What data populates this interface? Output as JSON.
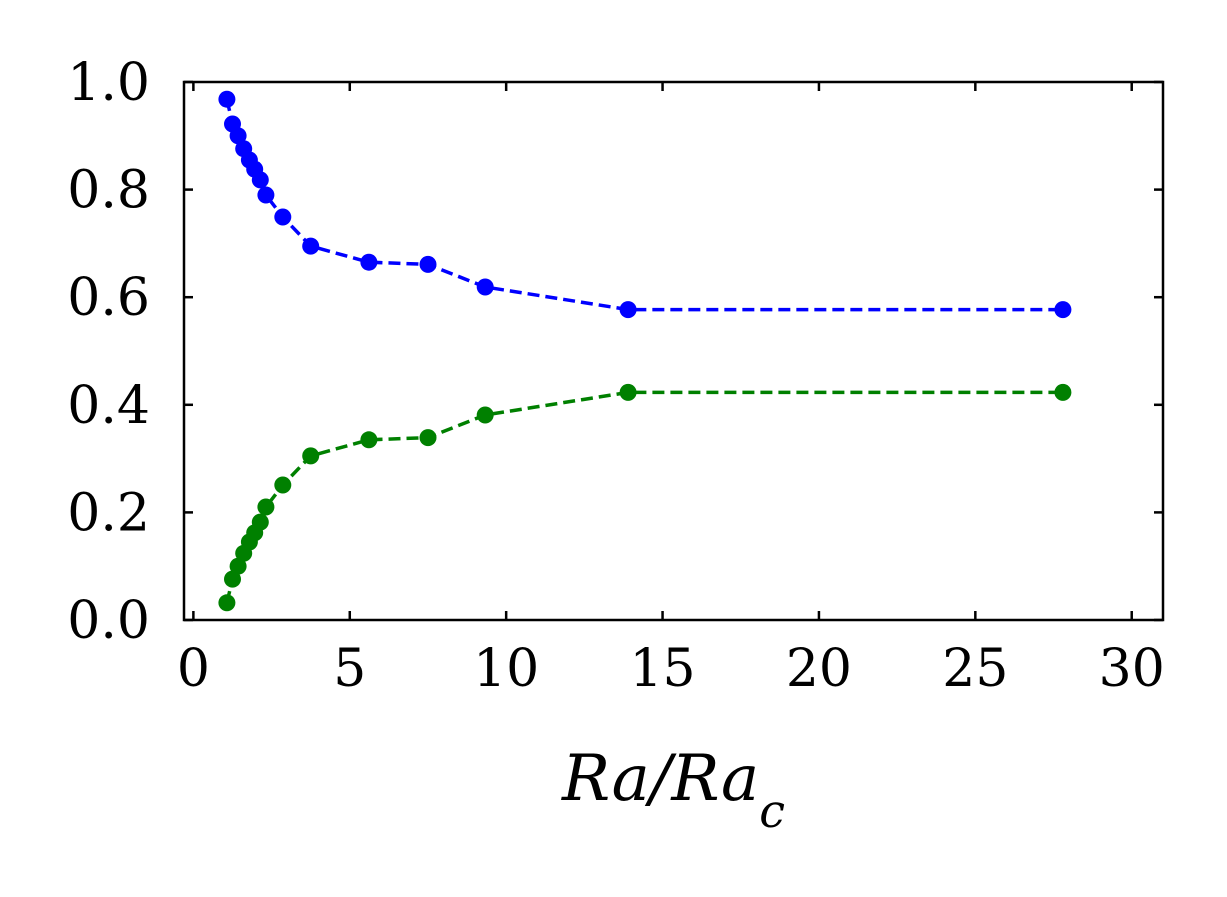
{
  "chart_data": {
    "type": "line",
    "title": "",
    "xlabel": "Ra/Ra",
    "xlabel_subscript": "c",
    "ylabel": "",
    "xlim": [
      -0.3,
      31
    ],
    "ylim": [
      0,
      1
    ],
    "xticks": [
      0,
      5,
      10,
      15,
      20,
      25,
      30
    ],
    "xtick_labels": [
      "0",
      "5",
      "10",
      "15",
      "20",
      "25",
      "30"
    ],
    "yticks": [
      0,
      0.2,
      0.4,
      0.6,
      0.8,
      1.0
    ],
    "ytick_labels": [
      "0.0",
      "0.2",
      "0.4",
      "0.6",
      "0.8",
      "1.0"
    ],
    "grid": false,
    "legend": "none",
    "x": [
      1.07,
      1.25,
      1.43,
      1.61,
      1.79,
      1.96,
      2.14,
      2.32,
      2.86,
      3.75,
      5.61,
      7.5,
      9.33,
      13.9,
      27.8
    ],
    "series": [
      {
        "color": "#0000ff",
        "line_style": "dashed",
        "values": [
          0.968,
          0.922,
          0.9,
          0.876,
          0.855,
          0.838,
          0.818,
          0.79,
          0.749,
          0.695,
          0.665,
          0.661,
          0.619,
          0.577,
          0.577
        ]
      },
      {
        "color": "#008000",
        "line_style": "dashed",
        "values": [
          0.032,
          0.076,
          0.1,
          0.124,
          0.145,
          0.162,
          0.182,
          0.21,
          0.251,
          0.305,
          0.335,
          0.339,
          0.381,
          0.423,
          0.423
        ]
      }
    ]
  }
}
